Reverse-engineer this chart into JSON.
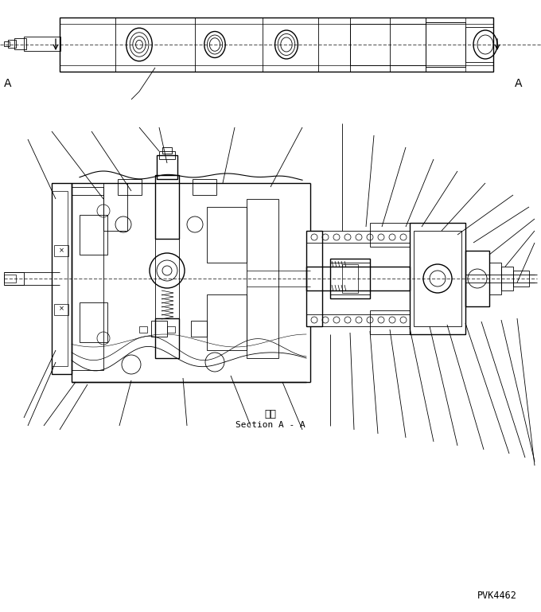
{
  "bg_color": "#ffffff",
  "line_color": "#000000",
  "fig_width": 6.8,
  "fig_height": 7.69,
  "dpi": 100,
  "section_label_jp": "断面",
  "section_label_en": "Section A - A",
  "part_number": "PVK4462"
}
